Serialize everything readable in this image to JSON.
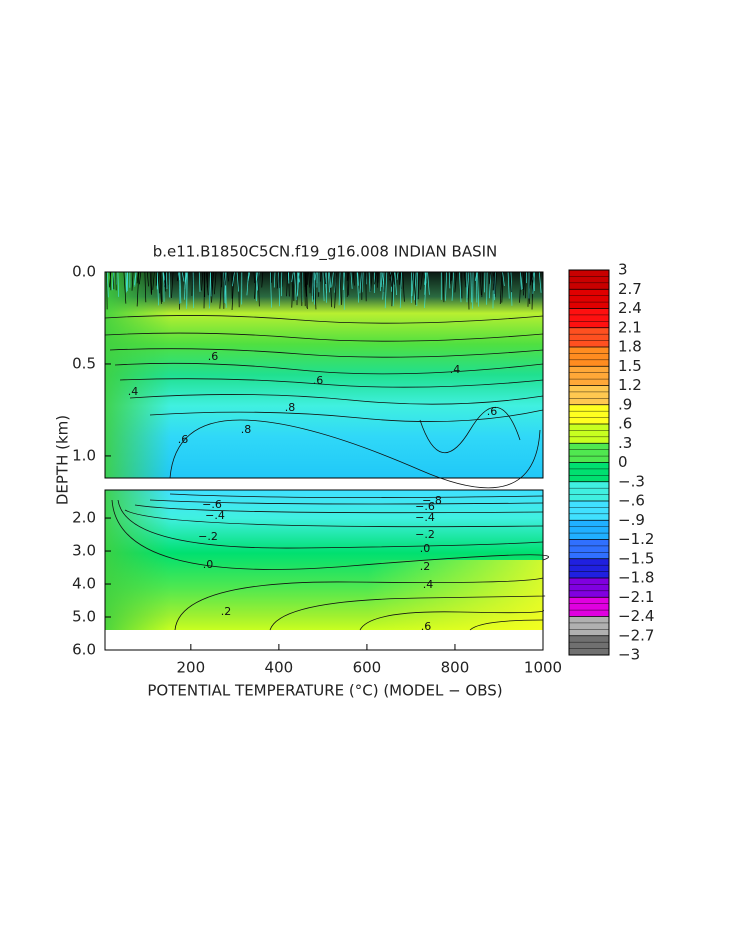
{
  "chart_data": {
    "type": "contour",
    "title": "b.e11.B1850C5CN.f19_g16.008 INDIAN BASIN",
    "xlabel": "POTENTIAL TEMPERATURE (°C) (MODEL − OBS)",
    "ylabel": "DEPTH (km)",
    "xlim": [
      5,
      1000
    ],
    "xticks": [
      200,
      400,
      600,
      800,
      1000
    ],
    "upper_ylim": [
      0,
      1.12
    ],
    "upper_yticks": [
      {
        "value": 0,
        "label": "0.0"
      },
      {
        "value": 0.5,
        "label": "0.5"
      },
      {
        "value": 1.0,
        "label": "1.0"
      }
    ],
    "lower_ylim": [
      1.15,
      6.0
    ],
    "lower_yticks": [
      {
        "value": 2,
        "label": "2.0"
      },
      {
        "value": 3,
        "label": "3.0"
      },
      {
        "value": 4,
        "label": "4.0"
      },
      {
        "value": 5,
        "label": "5.0"
      },
      {
        "value": 6,
        "label": "6.0"
      }
    ],
    "clim": [
      -3,
      3
    ],
    "colorbar_ticks": [
      3,
      {
        "value": 2.7,
        "label": "2.7"
      },
      {
        "value": 2.4,
        "label": "2.4"
      },
      {
        "value": 2.1,
        "label": "2.1"
      },
      {
        "value": 1.8,
        "label": "1.8"
      },
      {
        "value": 1.5,
        "label": "1.5"
      },
      {
        "value": 1.2,
        "label": "1.2"
      },
      {
        "value": 0.9,
        "label": ".9"
      },
      {
        "value": 0.6,
        "label": ".6"
      },
      {
        "value": 0.3,
        "label": ".3"
      },
      0,
      {
        "value": -0.3,
        "label": "−.3"
      },
      {
        "value": -0.6,
        "label": "−.6"
      },
      {
        "value": -0.9,
        "label": "−.9"
      },
      {
        "value": -1.2,
        "label": "−1.2"
      },
      {
        "value": -1.5,
        "label": "−1.5"
      },
      {
        "value": -1.8,
        "label": "−1.8"
      },
      {
        "value": -2.1,
        "label": "−2.1"
      },
      {
        "value": -2.4,
        "label": "−2.4"
      },
      {
        "value": -2.7,
        "label": "−2.7"
      },
      {
        "value": -3,
        "label": "−3"
      }
    ],
    "colorbar_colors": [
      "#c80000",
      "#e00000",
      "#ff1010",
      "#ff5020",
      "#ff8c20",
      "#ffa838",
      "#ffc850",
      "#ffff20",
      "#c8ff20",
      "#50e850",
      "#00e070",
      "#40f0e0",
      "#40e0ff",
      "#20b0ff",
      "#3070ff",
      "#2020e0",
      "#8000e0",
      "#e000e0",
      "#b0b0b0",
      "#707070"
    ],
    "annotations": [
      ".4",
      ".6",
      ".6",
      ".8",
      ".8",
      ".6",
      ".4",
      ".6",
      "−.6",
      "−.4",
      "−.2",
      ".0",
      ".2",
      "−.8",
      "−.6",
      "−.4",
      "−.2",
      ".0",
      ".2",
      ".4",
      ".6"
    ]
  }
}
